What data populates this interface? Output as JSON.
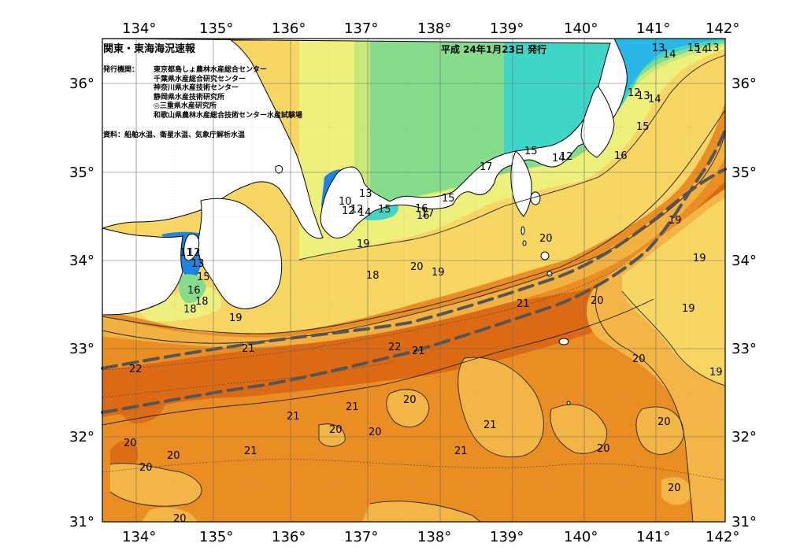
{
  "map": {
    "title": "関東・東海海況速報",
    "date": "平成 24年1月23日 発行",
    "issuers_label": "発行機関：",
    "issuers": [
      "東京都島しょ農林水産総合センター",
      "千葉県水産総合研究センター",
      "神奈川県水産技術センター",
      "静岡県水産技術研究所",
      "◎三重県水産研究所",
      "和歌山県農林水産総合技術センター水産試験場"
    ],
    "source": "資料：船舶水温、衛星水温、気象庁解析水温",
    "lon_ticks": [
      "134°",
      "135°",
      "136°",
      "137°",
      "138°",
      "139°",
      "140°",
      "141°",
      "142°"
    ],
    "lat_ticks": [
      "36°",
      "35°",
      "34°",
      "33°",
      "32°",
      "31°"
    ],
    "contour_labels": [
      "13",
      "14",
      "15",
      "14",
      "13",
      "12",
      "13",
      "14",
      "15",
      "16",
      "15",
      "14",
      "12",
      "15",
      "17",
      "16",
      "15",
      "16",
      "17",
      "10",
      "12",
      "14",
      "12",
      "13",
      "19",
      "20",
      "19",
      "18",
      "19",
      "11",
      "12",
      "13",
      "15",
      "16",
      "18",
      "18",
      "19",
      "20",
      "19",
      "19",
      "21",
      "22",
      "21",
      "21",
      "20",
      "20",
      "21",
      "21",
      "22",
      "21",
      "20",
      "20",
      "21",
      "20",
      "20",
      "20",
      "20",
      "21",
      "20",
      "19",
      "20",
      "20",
      "20"
    ],
    "colors": {
      "sst_22_plus": "#dc6a14",
      "sst_21": "#ea8d23",
      "sst_20": "#f3b646",
      "sst_19": "#f7d664",
      "sst_18": "#eef07c",
      "sst_17": "#c6ea7a",
      "sst_16": "#86dc8c",
      "sst_15": "#3ed6c6",
      "sst_14": "#2ab6e6",
      "sst_12": "#1e84e4",
      "land": "#ffffff",
      "kuroshio_axis": "#555555"
    }
  }
}
